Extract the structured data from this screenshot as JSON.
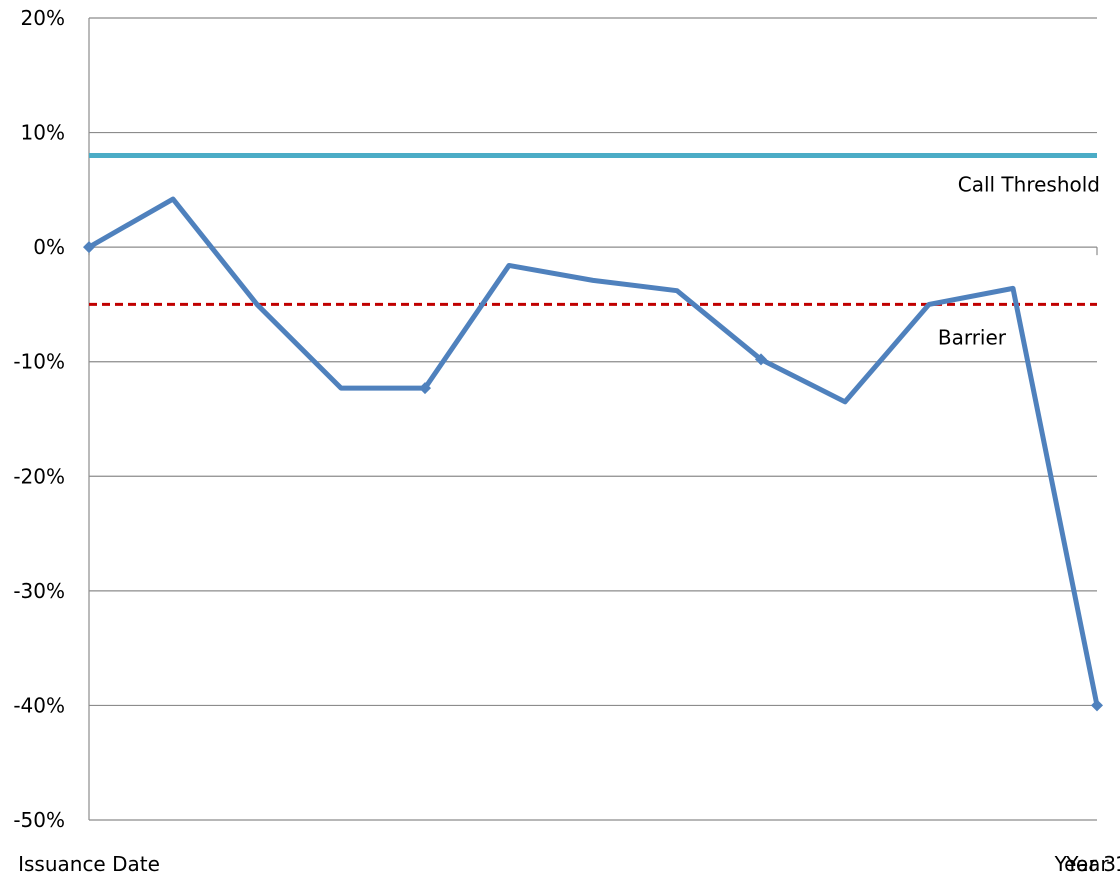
{
  "chart_data": {
    "type": "line",
    "title": "",
    "xlabel": "",
    "ylabel": "",
    "categories": [
      "Issuance Date",
      "Year 1",
      "Year 2",
      "Year 3"
    ],
    "x_period": 12,
    "xlim": [
      0,
      12
    ],
    "ylim": [
      -50,
      20
    ],
    "y_ticks": [
      20,
      10,
      0,
      -10,
      -20,
      -30,
      -40,
      -50
    ],
    "y_tick_labels": [
      "20%",
      "10%",
      "0%",
      "-10%",
      "-20%",
      "-30%",
      "-40%",
      "-50%"
    ],
    "grid": true,
    "series": [
      {
        "name": "",
        "color": "#4f81bd",
        "x": [
          0,
          1,
          2,
          3,
          4,
          5,
          6,
          7,
          8,
          9,
          10,
          11,
          12
        ],
        "values": [
          0,
          4.2,
          -5,
          -12.3,
          -12.3,
          -1.6,
          -2.9,
          -3.8,
          -9.8,
          -13.5,
          -5,
          -3.6,
          -40
        ],
        "markers_at": [
          0,
          4,
          8,
          12
        ]
      }
    ],
    "reference_lines": [
      {
        "label": "Call Threshold",
        "value": 8,
        "style": "solid",
        "color": "#4bacc6"
      },
      {
        "label": "Barrier",
        "value": -5,
        "style": "dashed",
        "color": "#c00000"
      }
    ]
  }
}
